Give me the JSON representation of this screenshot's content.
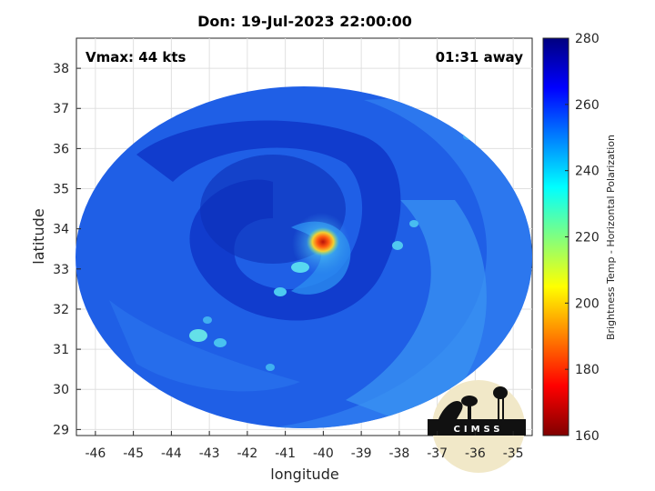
{
  "title": "Don: 19-Jul-2023 22:00:00",
  "vmax_label": "Vmax: 44 kts",
  "time_away_label": "01:31 away",
  "x_axis": {
    "label": "longitude",
    "range": [
      -46.5,
      -34.5
    ],
    "ticks": [
      "-46",
      "-45",
      "-44",
      "-43",
      "-42",
      "-41",
      "-40",
      "-39",
      "-38",
      "-37",
      "-36",
      "-35"
    ]
  },
  "y_axis": {
    "label": "latitude",
    "range": [
      28.85,
      38.75
    ],
    "ticks": [
      "29",
      "30",
      "31",
      "32",
      "33",
      "34",
      "35",
      "36",
      "37",
      "38"
    ]
  },
  "colorbar": {
    "label": "Brightness Temp - Horizontal Polarization",
    "range": [
      160,
      280
    ],
    "ticks": [
      "160",
      "180",
      "200",
      "220",
      "240",
      "260",
      "280"
    ],
    "colormap": "jet"
  },
  "storm_center": {
    "lon": -39.9,
    "lat": 33.8
  },
  "logo": {
    "text": "CIMSS"
  },
  "colors": {
    "background_field": "#1f5fe6",
    "spiral_band": "#0f36c8",
    "warm_core": "#e0300a"
  }
}
